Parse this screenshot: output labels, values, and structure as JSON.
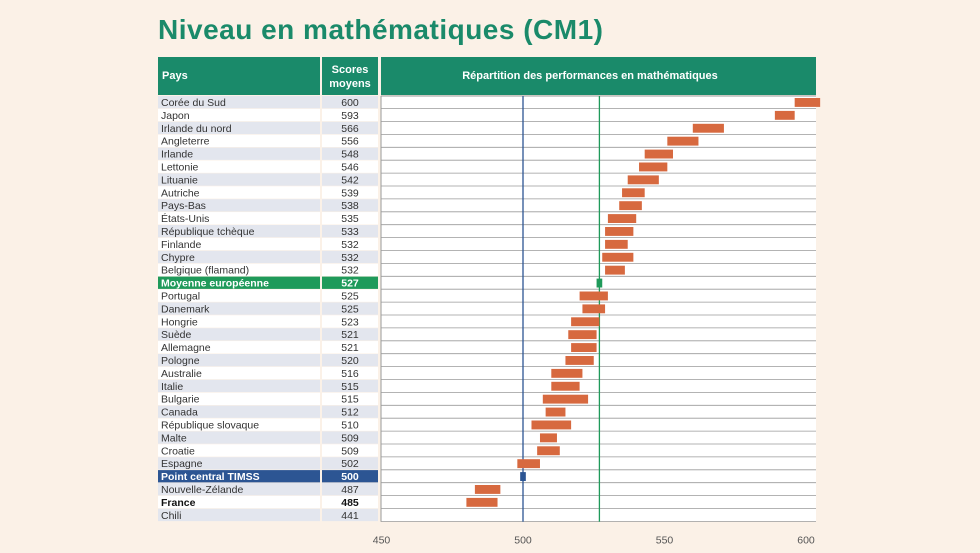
{
  "title": "Niveau en mathématiques (CM1)",
  "header": {
    "col_country": "Pays",
    "col_score_line1": "Scores",
    "col_score_line2": "moyens",
    "col_distribution": "Répartition des performances en mathématiques"
  },
  "colors": {
    "header_green": "#1a8a6a",
    "bar_orange": "#d7693f",
    "eu_green": "#1f9a5a",
    "timss_blue": "#2c5593",
    "row_shade": "#e3e6ee",
    "background": "#fbf1e7"
  },
  "chart_data": {
    "type": "bar",
    "title": "Niveau en mathématiques (CM1)",
    "xlabel": "",
    "ylabel": "",
    "xlim": [
      450,
      600
    ],
    "x_ticks": [
      "450",
      "500",
      "550",
      "600"
    ],
    "reference_lines": [
      {
        "name": "Point central TIMSS",
        "value": 500
      },
      {
        "name": "Moyenne européenne",
        "value": 527
      }
    ],
    "rows": [
      {
        "country": "Corée du Sud",
        "score": "600",
        "low": 596,
        "high": 605,
        "kind": "normal"
      },
      {
        "country": "Japon",
        "score": "593",
        "low": 589,
        "high": 596,
        "kind": "normal"
      },
      {
        "country": "Irlande du nord",
        "score": "566",
        "low": 560,
        "high": 571,
        "kind": "normal"
      },
      {
        "country": "Angleterre",
        "score": "556",
        "low": 551,
        "high": 562,
        "kind": "normal"
      },
      {
        "country": "Irlande",
        "score": "548",
        "low": 543,
        "high": 553,
        "kind": "normal"
      },
      {
        "country": "Lettonie",
        "score": "546",
        "low": 541,
        "high": 551,
        "kind": "normal"
      },
      {
        "country": "Lituanie",
        "score": "542",
        "low": 537,
        "high": 548,
        "kind": "normal"
      },
      {
        "country": "Autriche",
        "score": "539",
        "low": 535,
        "high": 543,
        "kind": "normal"
      },
      {
        "country": "Pays-Bas",
        "score": "538",
        "low": 534,
        "high": 542,
        "kind": "normal"
      },
      {
        "country": "États-Unis",
        "score": "535",
        "low": 530,
        "high": 540,
        "kind": "normal"
      },
      {
        "country": "République tchèque",
        "score": "533",
        "low": 529,
        "high": 539,
        "kind": "normal"
      },
      {
        "country": "Finlande",
        "score": "532",
        "low": 529,
        "high": 537,
        "kind": "normal"
      },
      {
        "country": "Chypre",
        "score": "532",
        "low": 528,
        "high": 539,
        "kind": "normal"
      },
      {
        "country": "Belgique (flamand)",
        "score": "532",
        "low": 529,
        "high": 536,
        "kind": "normal"
      },
      {
        "country": "Moyenne européenne",
        "score": "527",
        "low": 526,
        "high": 528,
        "kind": "eu"
      },
      {
        "country": "Portugal",
        "score": "525",
        "low": 520,
        "high": 530,
        "kind": "normal"
      },
      {
        "country": "Danemark",
        "score": "525",
        "low": 521,
        "high": 529,
        "kind": "normal"
      },
      {
        "country": "Hongrie",
        "score": "523",
        "low": 517,
        "high": 527,
        "kind": "normal"
      },
      {
        "country": "Suède",
        "score": "521",
        "low": 516,
        "high": 526,
        "kind": "normal"
      },
      {
        "country": "Allemagne",
        "score": "521",
        "low": 517,
        "high": 526,
        "kind": "normal"
      },
      {
        "country": "Pologne",
        "score": "520",
        "low": 515,
        "high": 525,
        "kind": "normal"
      },
      {
        "country": "Australie",
        "score": "516",
        "low": 510,
        "high": 521,
        "kind": "normal"
      },
      {
        "country": "Italie",
        "score": "515",
        "low": 510,
        "high": 520,
        "kind": "normal"
      },
      {
        "country": "Bulgarie",
        "score": "515",
        "low": 507,
        "high": 523,
        "kind": "normal"
      },
      {
        "country": "Canada",
        "score": "512",
        "low": 508,
        "high": 515,
        "kind": "normal"
      },
      {
        "country": "République slovaque",
        "score": "510",
        "low": 503,
        "high": 517,
        "kind": "normal"
      },
      {
        "country": "Malte",
        "score": "509",
        "low": 506,
        "high": 512,
        "kind": "normal"
      },
      {
        "country": "Croatie",
        "score": "509",
        "low": 505,
        "high": 513,
        "kind": "normal"
      },
      {
        "country": "Espagne",
        "score": "502",
        "low": 498,
        "high": 506,
        "kind": "normal"
      },
      {
        "country": "Point central TIMSS",
        "score": "500",
        "low": 499,
        "high": 501,
        "kind": "timss"
      },
      {
        "country": "Nouvelle-Zélande",
        "score": "487",
        "low": 483,
        "high": 492,
        "kind": "normal"
      },
      {
        "country": "France",
        "score": "485",
        "low": 480,
        "high": 491,
        "kind": "bold"
      },
      {
        "country": "Chili",
        "score": "441",
        "low": null,
        "high": null,
        "kind": "normal"
      }
    ]
  }
}
